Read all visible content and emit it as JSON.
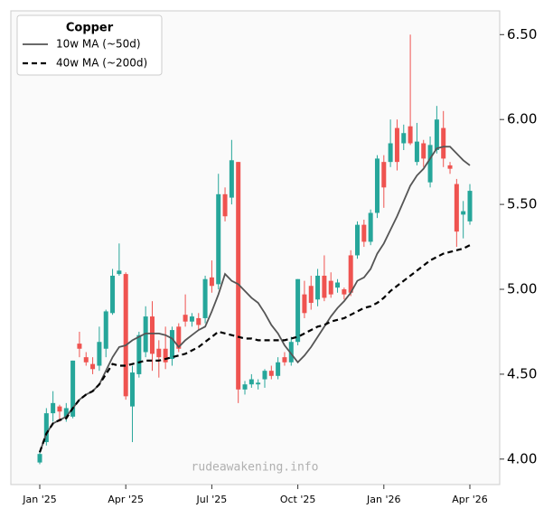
{
  "chart_data": {
    "type": "candlestick",
    "legend_title": "Copper",
    "watermark": "rudeawakening.info",
    "up_color": "#26a69a",
    "down_color": "#ef5350",
    "categories": [
      "Jan '25",
      null,
      null,
      null,
      null,
      null,
      null,
      null,
      null,
      null,
      null,
      null,
      null,
      "Apr '25",
      null,
      null,
      null,
      null,
      null,
      null,
      null,
      null,
      null,
      null,
      null,
      null,
      "Jul '25",
      null,
      null,
      null,
      null,
      null,
      null,
      null,
      null,
      null,
      null,
      null,
      null,
      "Oct '25",
      null,
      null,
      null,
      null,
      null,
      null,
      null,
      null,
      null,
      null,
      null,
      null,
      "Jan '26",
      null,
      null,
      null,
      null,
      null,
      null,
      null,
      null,
      null,
      null,
      null,
      null,
      "Apr '26"
    ],
    "open": [
      3.98,
      4.1,
      4.27,
      4.31,
      4.25,
      4.25,
      4.68,
      4.6,
      4.56,
      4.55,
      4.65,
      4.86,
      5.09,
      5.09,
      4.31,
      4.5,
      4.63,
      4.84,
      4.65,
      4.65,
      4.59,
      4.78,
      4.85,
      4.81,
      4.83,
      4.83,
      5.07,
      5.03,
      5.56,
      5.54,
      5.75,
      4.41,
      4.44,
      4.44,
      4.47,
      4.52,
      4.49,
      4.6,
      4.57,
      4.69,
      4.97,
      5.02,
      4.94,
      5.08,
      5.05,
      5.01,
      5.0,
      5.2,
      5.2,
      5.38,
      5.28,
      5.45,
      5.75,
      5.75,
      5.95,
      5.86,
      5.96,
      5.75,
      5.86,
      5.63,
      5.82,
      5.95,
      5.73,
      5.62,
      5.44,
      5.4
    ],
    "high": [
      4.04,
      4.3,
      4.4,
      4.32,
      4.33,
      4.58,
      4.75,
      4.63,
      4.6,
      4.78,
      4.88,
      5.12,
      5.27,
      5.1,
      4.55,
      4.75,
      4.9,
      4.93,
      4.7,
      4.78,
      4.78,
      4.8,
      4.97,
      4.86,
      4.86,
      5.08,
      5.17,
      5.68,
      5.6,
      5.88,
      5.75,
      4.46,
      4.5,
      4.47,
      4.53,
      4.55,
      4.6,
      4.63,
      4.72,
      5.06,
      5.05,
      5.08,
      5.12,
      5.2,
      5.1,
      5.06,
      5.01,
      5.23,
      5.4,
      5.41,
      5.47,
      5.79,
      5.79,
      6.0,
      6.0,
      5.97,
      6.5,
      5.98,
      5.88,
      5.9,
      6.08,
      6.05,
      5.75,
      5.65,
      5.52,
      5.62
    ],
    "low": [
      3.97,
      4.08,
      4.22,
      4.22,
      4.22,
      4.24,
      4.6,
      4.55,
      4.5,
      4.52,
      4.6,
      4.85,
      5.08,
      4.35,
      4.1,
      4.48,
      4.6,
      4.52,
      4.48,
      4.53,
      4.55,
      4.63,
      4.78,
      4.78,
      4.76,
      4.8,
      4.98,
      5.0,
      5.4,
      5.5,
      4.33,
      4.38,
      4.42,
      4.41,
      4.42,
      4.47,
      4.47,
      4.55,
      4.55,
      4.67,
      4.83,
      4.88,
      4.9,
      4.93,
      4.95,
      4.98,
      4.94,
      4.96,
      5.18,
      5.25,
      5.26,
      5.42,
      5.48,
      5.72,
      5.7,
      5.82,
      5.85,
      5.73,
      5.72,
      5.6,
      5.8,
      5.72,
      5.68,
      5.25,
      5.3,
      5.38
    ],
    "close": [
      4.03,
      4.27,
      4.33,
      4.28,
      4.3,
      4.58,
      4.65,
      4.57,
      4.53,
      4.69,
      4.87,
      5.08,
      5.11,
      4.37,
      4.51,
      4.73,
      4.84,
      4.62,
      4.6,
      4.57,
      4.76,
      4.65,
      4.81,
      4.84,
      4.79,
      5.06,
      5.02,
      5.56,
      5.43,
      5.76,
      4.41,
      4.44,
      4.47,
      4.45,
      4.52,
      4.49,
      4.57,
      4.57,
      4.69,
      5.06,
      4.86,
      4.92,
      5.08,
      4.95,
      4.97,
      5.04,
      4.97,
      4.98,
      5.38,
      5.28,
      5.45,
      5.77,
      5.6,
      5.86,
      5.75,
      5.92,
      5.86,
      5.87,
      5.77,
      5.85,
      6.0,
      5.77,
      5.71,
      5.34,
      5.46,
      5.58
    ],
    "lines": [
      {
        "name": "10w MA (~50d)",
        "color": "#555555",
        "dash": false,
        "values": [
          4.04,
          4.15,
          4.21,
          4.23,
          4.25,
          4.3,
          4.35,
          4.38,
          4.4,
          4.44,
          4.52,
          4.6,
          4.66,
          4.67,
          4.7,
          4.72,
          4.74,
          4.74,
          4.74,
          4.73,
          4.71,
          4.66,
          4.7,
          4.73,
          4.76,
          4.78,
          4.87,
          4.97,
          5.09,
          5.05,
          5.03,
          4.99,
          4.95,
          4.92,
          4.86,
          4.79,
          4.74,
          4.67,
          4.62,
          4.57,
          4.61,
          4.66,
          4.72,
          4.78,
          4.84,
          4.89,
          4.93,
          4.98,
          5.05,
          5.07,
          5.12,
          5.21,
          5.27,
          5.35,
          5.43,
          5.52,
          5.61,
          5.67,
          5.71,
          5.77,
          5.83,
          5.84,
          5.84,
          5.8,
          5.76,
          5.73
        ]
      },
      {
        "name": "40w MA (~200d)",
        "color": "#000000",
        "dash": true,
        "values": [
          4.04,
          4.15,
          4.21,
          4.23,
          4.24,
          4.3,
          4.35,
          4.38,
          4.4,
          4.44,
          4.5,
          4.56,
          4.55,
          4.55,
          4.56,
          4.57,
          4.58,
          4.58,
          4.58,
          4.59,
          4.6,
          4.61,
          4.62,
          4.64,
          4.66,
          4.69,
          4.72,
          4.75,
          4.74,
          4.73,
          4.72,
          4.71,
          4.71,
          4.7,
          4.7,
          4.7,
          4.7,
          4.7,
          4.71,
          4.72,
          4.74,
          4.76,
          4.78,
          4.79,
          4.81,
          4.82,
          4.83,
          4.85,
          4.87,
          4.89,
          4.9,
          4.92,
          4.95,
          4.99,
          5.02,
          5.05,
          5.08,
          5.11,
          5.14,
          5.17,
          5.19,
          5.21,
          5.22,
          5.23,
          5.24,
          5.26
        ]
      }
    ],
    "ylim": [
      3.85,
      6.64
    ],
    "yticks": [
      {
        "value": 4.0,
        "label": "4.00"
      },
      {
        "value": 4.5,
        "label": "4.50"
      },
      {
        "value": 5.0,
        "label": "5.00"
      },
      {
        "value": 5.5,
        "label": "5.50"
      },
      {
        "value": 6.0,
        "label": "6.00"
      },
      {
        "value": 6.5,
        "label": "6.50"
      }
    ]
  }
}
